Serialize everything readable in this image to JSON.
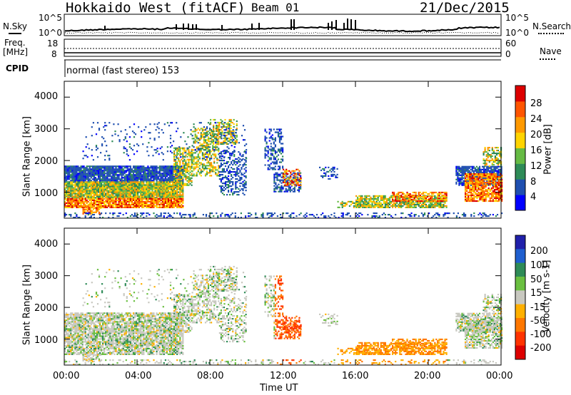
{
  "header": {
    "station": "Hokkaido West (fitACF)",
    "beam": "Beam 01",
    "date": "21/Dec/2015"
  },
  "status_labels": {
    "nsky": "N.Sky",
    "nsearch": "N.Search",
    "freq": "Freq.",
    "freq_unit": "[MHz]",
    "nave": "Nave",
    "cpid": "CPID",
    "cpid_text": "normal (fast stereo) 153",
    "noise_ticks": [
      "10^5",
      "10^0"
    ],
    "noise_ticks_right": [
      "10^5",
      "10^0"
    ],
    "freq_ticks": [
      "18",
      "8"
    ],
    "nave_ticks": [
      "60",
      "0"
    ]
  },
  "chart_data": [
    {
      "type": "heatmap",
      "title": "Power",
      "ylabel": "Slant Range [km]",
      "xlabel": "",
      "x": [
        "00:00",
        "04:00",
        "08:00",
        "12:00",
        "16:00",
        "20:00",
        "00:00"
      ],
      "yticks": [
        "1000",
        "2000",
        "3000",
        "4000"
      ],
      "ylim": [
        180,
        4500
      ],
      "colorbar": {
        "label": "Power [dB]",
        "ticks": [
          "4",
          "8",
          "12",
          "16",
          "20",
          "24",
          "28"
        ],
        "colors": [
          "#0000ff",
          "#1f4fb0",
          "#2e8b57",
          "#66bb44",
          "#ffd400",
          "#ff9900",
          "#ff5500",
          "#dd0000"
        ]
      }
    },
    {
      "type": "heatmap",
      "title": "Velocity",
      "ylabel": "Slant Range [km]",
      "xlabel": "Time UT",
      "x": [
        "00:00",
        "04:00",
        "08:00",
        "12:00",
        "16:00",
        "20:00",
        "00:00"
      ],
      "yticks": [
        "1000",
        "2000",
        "3000",
        "4000"
      ],
      "ylim": [
        180,
        4500
      ],
      "colorbar": {
        "label": "Velocity [m s-1]",
        "ticks": [
          "200",
          "100",
          "50",
          "15",
          "-15",
          "-50",
          "-100",
          "-200"
        ],
        "colors": [
          "#2020aa",
          "#1f5fcf",
          "#2e8b57",
          "#6abf40",
          "#c8c8c0",
          "#ffb000",
          "#ff7700",
          "#ff3300",
          "#dd0000"
        ]
      }
    }
  ]
}
